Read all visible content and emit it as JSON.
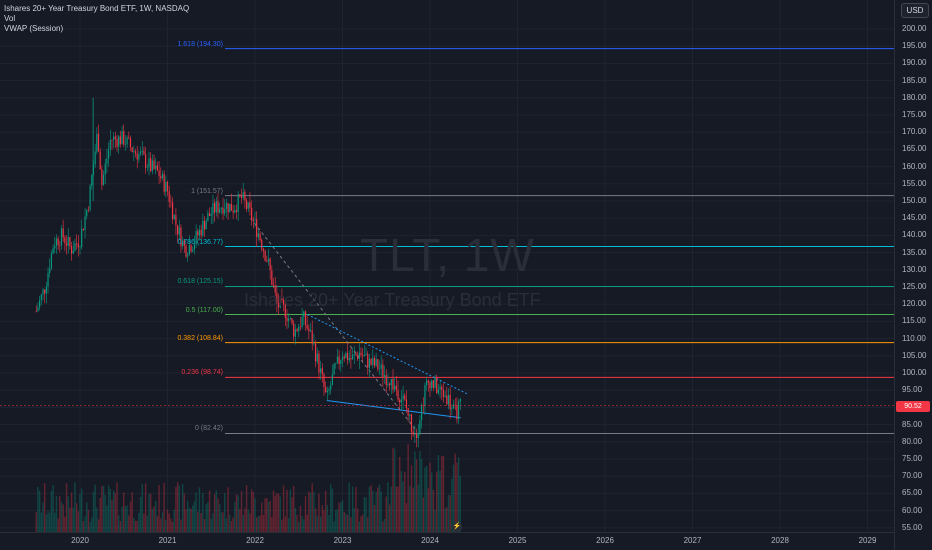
{
  "legend": {
    "symbol_line": "Ishares 20+ Year Treasury Bond ETF, 1W, NASDAQ",
    "indicator_vol": "Vol",
    "indicator_vwap": "VWAP (Session)"
  },
  "currency": "USD",
  "watermark": {
    "symbol": "TLT, 1W",
    "description": "Ishares 20+ Year Treasury Bond ETF"
  },
  "last_price": "90.52",
  "price_ticks": [
    "200.00",
    "195.00",
    "190.00",
    "185.00",
    "180.00",
    "175.00",
    "170.00",
    "165.00",
    "160.00",
    "155.00",
    "150.00",
    "145.00",
    "140.00",
    "135.00",
    "130.00",
    "125.00",
    "120.00",
    "115.00",
    "110.00",
    "105.00",
    "100.00",
    "95.00",
    "90.00",
    "85.00",
    "80.00",
    "75.00",
    "70.00",
    "65.00",
    "60.00",
    "55.00"
  ],
  "time_ticks": [
    "2020",
    "2021",
    "2022",
    "2023",
    "2024",
    "2025",
    "2026",
    "2027",
    "2028",
    "2029"
  ],
  "fib_levels": [
    {
      "label": "1.618 (194.30)",
      "price": 194.3,
      "color": "#2962ff"
    },
    {
      "label": "1 (151.57)",
      "price": 151.57,
      "color": "#787b86"
    },
    {
      "label": "0.786 (136.77)",
      "price": 136.77,
      "color": "#00bcd4"
    },
    {
      "label": "0.618 (125.15)",
      "price": 125.15,
      "color": "#089981"
    },
    {
      "label": "0.5 (117.00)",
      "price": 117.0,
      "color": "#4caf50"
    },
    {
      "label": "0.382 (108.84)",
      "price": 108.84,
      "color": "#ff9800"
    },
    {
      "label": "0.236 (98.74)",
      "price": 98.74,
      "color": "#f23645"
    },
    {
      "label": "0 (82.42)",
      "price": 82.42,
      "color": "#787b86"
    }
  ],
  "chart_data": {
    "type": "candlestick",
    "x_axis": "time",
    "y_range": [
      55,
      200
    ],
    "close_series": [
      [
        2019.5,
        118
      ],
      [
        2019.6,
        125
      ],
      [
        2019.7,
        138
      ],
      [
        2019.8,
        140
      ],
      [
        2019.9,
        136
      ],
      [
        2020.0,
        139
      ],
      [
        2020.1,
        150
      ],
      [
        2020.2,
        170
      ],
      [
        2020.25,
        155
      ],
      [
        2020.35,
        168
      ],
      [
        2020.5,
        168
      ],
      [
        2020.6,
        165
      ],
      [
        2020.7,
        163
      ],
      [
        2020.8,
        160
      ],
      [
        2020.9,
        158
      ],
      [
        2021.0,
        153
      ],
      [
        2021.1,
        143
      ],
      [
        2021.2,
        136
      ],
      [
        2021.3,
        138
      ],
      [
        2021.45,
        145
      ],
      [
        2021.55,
        148
      ],
      [
        2021.65,
        149
      ],
      [
        2021.75,
        148
      ],
      [
        2021.85,
        151
      ],
      [
        2021.95,
        146
      ],
      [
        2022.05,
        140
      ],
      [
        2022.15,
        132
      ],
      [
        2022.25,
        120
      ],
      [
        2022.35,
        118
      ],
      [
        2022.45,
        112
      ],
      [
        2022.55,
        116
      ],
      [
        2022.65,
        110
      ],
      [
        2022.75,
        100
      ],
      [
        2022.82,
        92
      ],
      [
        2022.9,
        100
      ],
      [
        2023.0,
        106
      ],
      [
        2023.1,
        104
      ],
      [
        2023.2,
        106
      ],
      [
        2023.3,
        103
      ],
      [
        2023.4,
        102
      ],
      [
        2023.5,
        99
      ],
      [
        2023.6,
        96
      ],
      [
        2023.7,
        92
      ],
      [
        2023.8,
        84
      ],
      [
        2023.85,
        83
      ],
      [
        2023.95,
        96
      ],
      [
        2024.0,
        98
      ],
      [
        2024.1,
        95
      ],
      [
        2024.2,
        93
      ],
      [
        2024.28,
        88
      ],
      [
        2024.35,
        90.52
      ]
    ]
  }
}
